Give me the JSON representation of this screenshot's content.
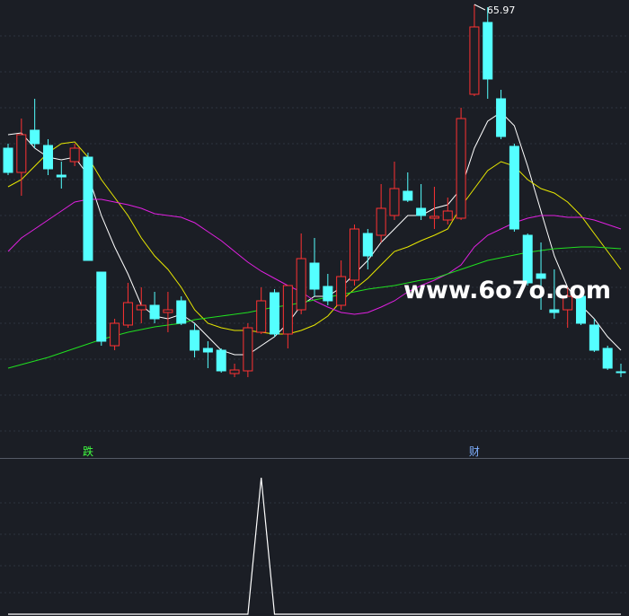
{
  "chart_data": [
    {
      "type": "candlestick",
      "high_label": 65.97,
      "up_color": "#ff3232",
      "down_color": "#54ffff",
      "ylim": [
        45.97,
        66.17
      ],
      "categories": [
        null,
        null,
        null,
        null,
        null,
        null,
        "跌",
        null,
        null,
        null,
        null,
        null,
        null,
        null,
        null,
        null,
        null,
        null,
        null,
        null,
        null,
        null,
        null,
        null,
        null,
        null,
        null,
        null,
        null,
        null,
        null,
        null,
        null,
        null,
        null,
        "财",
        null,
        null,
        null,
        null,
        null,
        null,
        null,
        null,
        null,
        null,
        null
      ],
      "category_colors": [
        null,
        null,
        null,
        null,
        null,
        null,
        "#40ff40",
        null,
        null,
        null,
        null,
        null,
        null,
        null,
        null,
        null,
        null,
        null,
        null,
        null,
        null,
        null,
        null,
        null,
        null,
        null,
        null,
        null,
        null,
        null,
        null,
        null,
        null,
        null,
        null,
        "#7fb0ff",
        null,
        null,
        null,
        null,
        null,
        null,
        null,
        null,
        null,
        null,
        null
      ],
      "ohlc": [
        [
          59.57,
          59.77,
          58.37,
          58.49
        ],
        [
          58.49,
          60.89,
          57.45,
          60.17
        ],
        [
          60.37,
          61.77,
          59.57,
          59.77
        ],
        [
          59.69,
          59.97,
          58.37,
          58.65
        ],
        [
          58.37,
          58.97,
          57.77,
          58.29
        ],
        [
          58.97,
          59.77,
          58.77,
          59.57
        ],
        [
          59.17,
          59.37,
          54.57,
          54.57
        ],
        [
          54.05,
          54.05,
          50.77,
          50.97
        ],
        [
          50.77,
          51.97,
          50.57,
          51.77
        ],
        [
          51.69,
          53.57,
          51.57,
          52.69
        ],
        [
          52.37,
          53.37,
          51.77,
          52.57
        ],
        [
          52.57,
          53.17,
          51.77,
          51.97
        ],
        [
          52.25,
          53.17,
          51.37,
          52.37
        ],
        [
          52.77,
          52.97,
          51.69,
          51.77
        ],
        [
          51.45,
          51.77,
          50.25,
          50.57
        ],
        [
          50.65,
          50.97,
          49.77,
          50.49
        ],
        [
          50.57,
          50.65,
          49.57,
          49.65
        ],
        [
          49.53,
          49.97,
          49.37,
          49.69
        ],
        [
          49.65,
          51.77,
          49.37,
          51.57
        ],
        [
          51.37,
          53.37,
          51.29,
          52.77
        ],
        [
          53.13,
          53.29,
          51.17,
          51.29
        ],
        [
          51.29,
          53.45,
          50.65,
          53.45
        ],
        [
          52.37,
          55.77,
          52.17,
          54.65
        ],
        [
          54.45,
          55.57,
          52.97,
          53.29
        ],
        [
          53.41,
          53.97,
          52.57,
          52.77
        ],
        [
          52.57,
          54.57,
          52.37,
          53.85
        ],
        [
          53.69,
          56.17,
          53.45,
          55.97
        ],
        [
          55.77,
          55.97,
          54.17,
          54.77
        ],
        [
          55.69,
          57.97,
          55.37,
          56.89
        ],
        [
          56.57,
          58.97,
          56.37,
          57.77
        ],
        [
          57.65,
          58.49,
          57.17,
          57.25
        ],
        [
          56.89,
          57.97,
          56.37,
          56.57
        ],
        [
          56.45,
          57.85,
          55.97,
          56.53
        ],
        [
          56.37,
          57.37,
          56.17,
          56.77
        ],
        [
          56.45,
          61.37,
          56.37,
          60.89
        ],
        [
          61.97,
          65.97,
          61.89,
          64.97
        ],
        [
          65.17,
          65.85,
          61.77,
          62.65
        ],
        [
          61.77,
          62.17,
          59.97,
          60.09
        ],
        [
          59.65,
          59.77,
          55.85,
          55.97
        ],
        [
          55.69,
          55.77,
          53.45,
          53.57
        ],
        [
          53.97,
          55.37,
          52.37,
          53.77
        ],
        [
          52.37,
          54.17,
          51.97,
          52.25
        ],
        [
          52.37,
          53.37,
          51.57,
          52.97
        ],
        [
          52.97,
          53.17,
          51.69,
          51.77
        ],
        [
          51.69,
          51.97,
          50.49,
          50.57
        ],
        [
          50.65,
          50.77,
          49.69,
          49.77
        ],
        [
          49.61,
          49.97,
          49.37,
          49.57
        ]
      ],
      "series": [
        {
          "color": "#ffffff",
          "values": [
            60.17,
            60.25,
            59.57,
            59.17,
            59.05,
            59.17,
            58.37,
            56.57,
            55.17,
            53.97,
            52.57,
            52.09,
            51.97,
            52.17,
            51.77,
            51.17,
            50.57,
            50.37,
            50.37,
            50.77,
            51.17,
            51.77,
            52.57,
            52.97,
            52.97,
            53.37,
            53.97,
            54.57,
            55.37,
            55.97,
            56.57,
            56.57,
            56.89,
            57.05,
            57.77,
            59.57,
            60.77,
            61.17,
            60.57,
            58.77,
            56.77,
            54.77,
            53.37,
            52.57,
            51.97,
            51.17,
            50.57
          ]
        },
        {
          "color": "#e8e800",
          "values": [
            57.85,
            58.17,
            58.77,
            59.37,
            59.77,
            59.85,
            59.17,
            58.17,
            57.37,
            56.57,
            55.57,
            54.77,
            54.17,
            53.37,
            52.37,
            51.77,
            51.57,
            51.45,
            51.45,
            51.37,
            51.29,
            51.29,
            51.45,
            51.69,
            52.09,
            52.77,
            53.29,
            53.77,
            54.37,
            54.97,
            55.17,
            55.45,
            55.69,
            55.97,
            56.97,
            57.77,
            58.57,
            58.97,
            58.77,
            58.17,
            57.77,
            57.57,
            57.17,
            56.57,
            55.77,
            54.97,
            54.17
          ]
        },
        {
          "color": "#e020e0",
          "values": [
            54.97,
            55.57,
            55.97,
            56.37,
            56.77,
            57.17,
            57.29,
            57.29,
            57.17,
            57.05,
            56.89,
            56.65,
            56.57,
            56.49,
            56.25,
            55.85,
            55.45,
            54.97,
            54.49,
            54.09,
            53.77,
            53.45,
            53.17,
            52.77,
            52.49,
            52.25,
            52.17,
            52.25,
            52.49,
            52.77,
            53.17,
            53.45,
            53.69,
            53.97,
            54.37,
            55.17,
            55.69,
            55.97,
            56.25,
            56.45,
            56.57,
            56.57,
            56.49,
            56.49,
            56.37,
            56.17,
            55.97
          ]
        },
        {
          "color": "#20e020",
          "values": [
            49.77,
            49.93,
            50.09,
            50.25,
            50.45,
            50.65,
            50.85,
            51.05,
            51.21,
            51.37,
            51.49,
            51.61,
            51.69,
            51.77,
            51.93,
            52.01,
            52.09,
            52.17,
            52.25,
            52.37,
            52.49,
            52.57,
            52.69,
            52.81,
            52.93,
            53.05,
            53.17,
            53.29,
            53.37,
            53.45,
            53.57,
            53.69,
            53.77,
            53.97,
            54.17,
            54.37,
            54.57,
            54.69,
            54.81,
            54.93,
            55.01,
            55.09,
            55.13,
            55.17,
            55.17,
            55.13,
            55.09
          ]
        }
      ]
    },
    {
      "type": "line",
      "color": "#ffffff",
      "ylim": [
        0,
        1
      ],
      "values": [
        0,
        0,
        0,
        0,
        0,
        0,
        0,
        0,
        0,
        0,
        0,
        0,
        0,
        0,
        0,
        0,
        0,
        0,
        0,
        1,
        0,
        0,
        0,
        0,
        0,
        0,
        0,
        0,
        0,
        0,
        0,
        0,
        0,
        0,
        0,
        0,
        0,
        0,
        0,
        0,
        0,
        0,
        0,
        0,
        0,
        0,
        0
      ]
    }
  ],
  "watermark": "www.6o7o.com"
}
